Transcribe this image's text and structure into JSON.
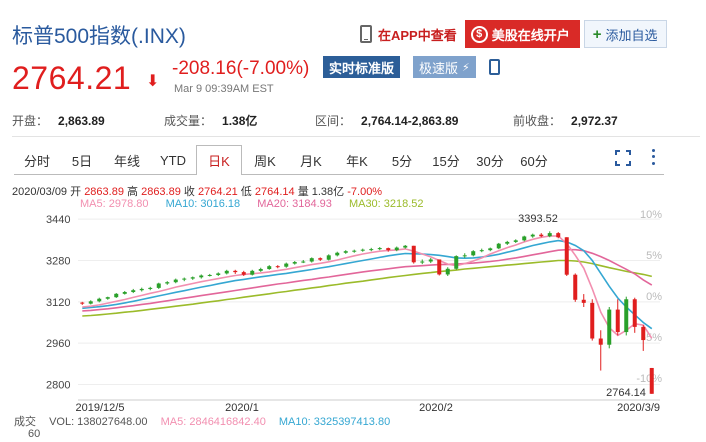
{
  "header": {
    "title": "标普500指数(.INX)",
    "app_link": "在APP中查看",
    "open_account": "美股在线开户",
    "add_watchlist": "添加自选"
  },
  "quote": {
    "price": "2764.21",
    "change": "-208.16(-7.00%)",
    "timestamp": "Mar 9 09:39AM EST",
    "realtime_label": "实时标准版",
    "fast_label": "极速版"
  },
  "stats": [
    {
      "label": "开盘：",
      "value": "2,863.89"
    },
    {
      "label": "成交量：",
      "value": "1.38亿"
    },
    {
      "label": "区间：",
      "value": "2,764.14-2,863.89"
    },
    {
      "label": "前收盘：",
      "value": "2,972.37"
    }
  ],
  "tabs": [
    "分时",
    "5日",
    "年线",
    "YTD",
    "日K",
    "周K",
    "月K",
    "年K",
    "5分",
    "15分",
    "30分",
    "60分"
  ],
  "active_tab": 4,
  "info": {
    "date": "2020/03/09",
    "open_label": "开",
    "open": "2863.89",
    "high_label": "高",
    "high": "2863.89",
    "close_label": "收",
    "close": "2764.21",
    "low_label": "低",
    "low": "2764.14",
    "vol_label": "量",
    "vol": "1.38亿",
    "pct": "-7.00%",
    "ma5": "MA5: 2978.80",
    "ma10": "MA10: 3016.18",
    "ma20": "MA20: 3184.93",
    "ma30": "MA30: 3218.52"
  },
  "volume_row": {
    "label": "成交",
    "vol": "VOL: 138027648.00",
    "ma5": "MA5: 2846416842.40",
    "ma10": "MA10: 3325397413.80",
    "axis_value": "60"
  },
  "chart_data": {
    "type": "candlestick",
    "y_ticks": [
      "3440",
      "3280",
      "3120",
      "2960",
      "2800"
    ],
    "y_tick_values": [
      3440,
      3280,
      3120,
      2960,
      2800
    ],
    "right_ticks": [
      "10%",
      "5%",
      "0%",
      "-5%",
      "-10%"
    ],
    "ylim": [
      2740,
      3460
    ],
    "x_labels": [
      "2019/12/5",
      "2020/1",
      "2020/2",
      "2020/3/9"
    ],
    "annotations": {
      "high": "3393.52",
      "low": "2764.14"
    },
    "candles": [
      [
        3117,
        3113,
        3120,
        3108
      ],
      [
        3113,
        3122,
        3126,
        3110
      ],
      [
        3122,
        3132,
        3136,
        3118
      ],
      [
        3132,
        3138,
        3140,
        3128
      ],
      [
        3138,
        3151,
        3154,
        3135
      ],
      [
        3151,
        3158,
        3162,
        3148
      ],
      [
        3158,
        3165,
        3170,
        3154
      ],
      [
        3165,
        3170,
        3175,
        3160
      ],
      [
        3170,
        3174,
        3178,
        3165
      ],
      [
        3174,
        3191,
        3194,
        3170
      ],
      [
        3191,
        3196,
        3200,
        3186
      ],
      [
        3196,
        3206,
        3210,
        3192
      ],
      [
        3206,
        3210,
        3214,
        3200
      ],
      [
        3210,
        3215,
        3218,
        3205
      ],
      [
        3215,
        3222,
        3226,
        3210
      ],
      [
        3222,
        3224,
        3228,
        3218
      ],
      [
        3224,
        3230,
        3234,
        3220
      ],
      [
        3230,
        3240,
        3244,
        3226
      ],
      [
        3240,
        3235,
        3244,
        3228
      ],
      [
        3235,
        3225,
        3240,
        3220
      ],
      [
        3225,
        3240,
        3244,
        3222
      ],
      [
        3240,
        3247,
        3252,
        3236
      ],
      [
        3247,
        3258,
        3262,
        3244
      ],
      [
        3258,
        3256,
        3262,
        3250
      ],
      [
        3256,
        3268,
        3272,
        3252
      ],
      [
        3268,
        3274,
        3278,
        3264
      ],
      [
        3274,
        3276,
        3282,
        3270
      ],
      [
        3276,
        3289,
        3292,
        3272
      ],
      [
        3289,
        3283,
        3292,
        3278
      ],
      [
        3283,
        3300,
        3304,
        3280
      ],
      [
        3300,
        3310,
        3314,
        3296
      ],
      [
        3310,
        3316,
        3320,
        3306
      ],
      [
        3316,
        3318,
        3322,
        3310
      ],
      [
        3318,
        3322,
        3326,
        3314
      ],
      [
        3322,
        3324,
        3329,
        3316
      ],
      [
        3324,
        3328,
        3332,
        3320
      ],
      [
        3328,
        3320,
        3330,
        3314
      ],
      [
        3320,
        3330,
        3334,
        3316
      ],
      [
        3330,
        3337,
        3340,
        3326
      ],
      [
        3337,
        3273,
        3337,
        3268
      ],
      [
        3273,
        3276,
        3284,
        3266
      ],
      [
        3276,
        3284,
        3290,
        3270
      ],
      [
        3284,
        3226,
        3284,
        3222
      ],
      [
        3226,
        3248,
        3254,
        3220
      ],
      [
        3248,
        3297,
        3300,
        3244
      ],
      [
        3297,
        3300,
        3308,
        3290
      ],
      [
        3300,
        3316,
        3320,
        3296
      ],
      [
        3316,
        3320,
        3326,
        3312
      ],
      [
        3320,
        3327,
        3330,
        3316
      ],
      [
        3327,
        3345,
        3348,
        3324
      ],
      [
        3345,
        3352,
        3356,
        3340
      ],
      [
        3352,
        3358,
        3362,
        3348
      ],
      [
        3358,
        3373,
        3376,
        3354
      ],
      [
        3373,
        3380,
        3384,
        3368
      ],
      [
        3380,
        3374,
        3386,
        3370
      ],
      [
        3374,
        3386,
        3393,
        3370
      ],
      [
        3386,
        3370,
        3390,
        3366
      ],
      [
        3370,
        3225,
        3370,
        3220
      ],
      [
        3225,
        3128,
        3230,
        3120
      ],
      [
        3128,
        3116,
        3150,
        3100
      ],
      [
        3116,
        2978,
        3130,
        2970
      ],
      [
        2978,
        2954,
        3010,
        2854
      ],
      [
        2954,
        3090,
        3100,
        2940
      ],
      [
        3090,
        3003,
        3130,
        2990
      ],
      [
        3003,
        3130,
        3140,
        2990
      ],
      [
        3130,
        3023,
        3136,
        3000
      ],
      [
        3023,
        2972,
        3030,
        2930
      ],
      [
        2864,
        2764,
        2864,
        2764
      ]
    ],
    "ma": {
      "ma5": [
        3100,
        3103,
        3108,
        3115,
        3122,
        3129,
        3137,
        3145,
        3153,
        3160,
        3168,
        3177,
        3184,
        3191,
        3198,
        3204,
        3210,
        3216,
        3222,
        3226,
        3229,
        3232,
        3236,
        3241,
        3246,
        3252,
        3258,
        3264,
        3269,
        3275,
        3282,
        3290,
        3298,
        3305,
        3311,
        3316,
        3319,
        3321,
        3325,
        3316,
        3305,
        3294,
        3280,
        3266,
        3260,
        3268,
        3278,
        3290,
        3305,
        3318,
        3330,
        3340,
        3352,
        3362,
        3370,
        3375,
        3375,
        3345,
        3300,
        3250,
        3170,
        3080,
        3020,
        2990,
        3010,
        3035,
        3030,
        2978.8
      ],
      "ma10": [
        3095,
        3098,
        3101,
        3105,
        3110,
        3116,
        3122,
        3129,
        3136,
        3143,
        3150,
        3157,
        3163,
        3170,
        3177,
        3183,
        3190,
        3196,
        3202,
        3207,
        3212,
        3217,
        3221,
        3226,
        3230,
        3235,
        3240,
        3245,
        3251,
        3256,
        3262,
        3268,
        3274,
        3280,
        3286,
        3292,
        3298,
        3303,
        3307,
        3306,
        3305,
        3303,
        3300,
        3295,
        3290,
        3289,
        3290,
        3293,
        3298,
        3304,
        3312,
        3320,
        3329,
        3338,
        3345,
        3352,
        3357,
        3352,
        3338,
        3318,
        3280,
        3230,
        3180,
        3135,
        3100,
        3070,
        3040,
        3016.18
      ],
      "ma20": [
        3085,
        3087,
        3090,
        3093,
        3097,
        3101,
        3105,
        3110,
        3114,
        3119,
        3124,
        3129,
        3134,
        3139,
        3144,
        3149,
        3154,
        3159,
        3164,
        3169,
        3174,
        3179,
        3184,
        3189,
        3193,
        3198,
        3203,
        3207,
        3212,
        3216,
        3221,
        3226,
        3231,
        3236,
        3240,
        3244,
        3248,
        3252,
        3256,
        3258,
        3260,
        3262,
        3264,
        3265,
        3266,
        3268,
        3270,
        3273,
        3276,
        3280,
        3285,
        3290,
        3296,
        3302,
        3308,
        3314,
        3320,
        3322,
        3322,
        3318,
        3308,
        3295,
        3280,
        3263,
        3246,
        3228,
        3205,
        3184.93
      ],
      "ma30": [
        3065,
        3067,
        3070,
        3073,
        3076,
        3080,
        3083,
        3087,
        3091,
        3095,
        3099,
        3103,
        3107,
        3111,
        3116,
        3120,
        3124,
        3129,
        3133,
        3138,
        3142,
        3147,
        3151,
        3156,
        3160,
        3165,
        3169,
        3174,
        3178,
        3183,
        3187,
        3192,
        3196,
        3200,
        3205,
        3209,
        3214,
        3218,
        3222,
        3226,
        3230,
        3233,
        3237,
        3240,
        3243,
        3247,
        3250,
        3253,
        3256,
        3259,
        3262,
        3265,
        3268,
        3271,
        3274,
        3277,
        3280,
        3280,
        3278,
        3274,
        3268,
        3260,
        3252,
        3245,
        3238,
        3232,
        3226,
        3218.52
      ]
    },
    "colors": {
      "up": "#2aa02a",
      "down": "#e01e1e",
      "ma5": "#f28fb0",
      "ma10": "#35a7d2",
      "ma20": "#e2669a",
      "ma30": "#9bbb2a",
      "accent": "#2a5a9e"
    }
  }
}
